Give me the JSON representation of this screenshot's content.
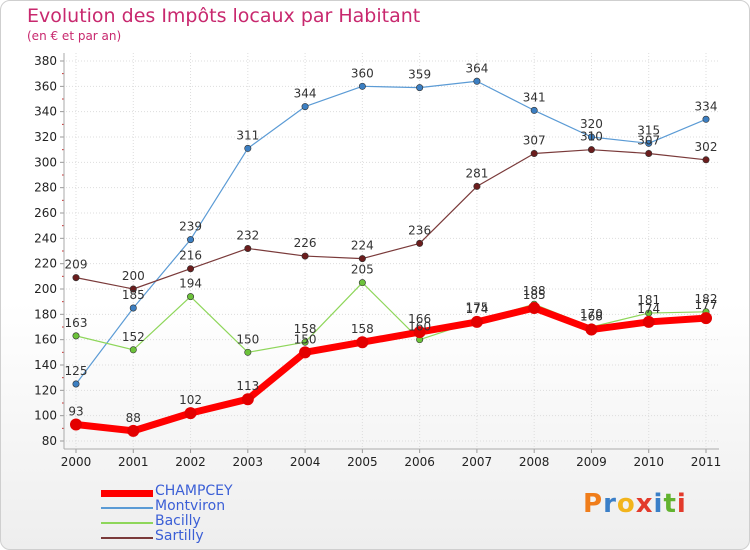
{
  "header": {
    "title": "Evolution des Impôts locaux par Habitant",
    "subtitle": "(en € et par an)"
  },
  "logo": {
    "text": "Proxiti",
    "letters": [
      {
        "ch": "P",
        "color": "#f07d1a"
      },
      {
        "ch": "r",
        "color": "#3a7fc8"
      },
      {
        "ch": "o",
        "color": "#f2b41c"
      },
      {
        "ch": "x",
        "color": "#e33a2b"
      },
      {
        "ch": "i",
        "color": "#3a7fc8"
      },
      {
        "ch": "t",
        "color": "#62b32f"
      },
      {
        "ch": "i",
        "color": "#e33a2b"
      }
    ]
  },
  "chart_data": {
    "type": "line",
    "title": "Evolution des Impôts locaux par Habitant",
    "subtitle": "(en € et par an)",
    "xlabel": "",
    "ylabel": "",
    "categories": [
      "2000",
      "2001",
      "2002",
      "2003",
      "2004",
      "2005",
      "2006",
      "2007",
      "2008",
      "2009",
      "2010",
      "2011"
    ],
    "ylim": [
      80,
      380
    ],
    "yticks": [
      80,
      100,
      120,
      140,
      160,
      180,
      200,
      220,
      240,
      260,
      280,
      300,
      320,
      340,
      360,
      380
    ],
    "grid": true,
    "legend_position": "bottom-left",
    "series": [
      {
        "name": "Montviron",
        "color": "#5b9bd5",
        "marker": "#3c7fc2",
        "width": 1.2,
        "values": [
          125,
          185,
          239,
          311,
          344,
          360,
          359,
          364,
          341,
          320,
          315,
          334
        ]
      },
      {
        "name": "Sartilly",
        "color": "#7a3a3a",
        "marker": "#6b1d1d",
        "width": 1.2,
        "values": [
          209,
          200,
          216,
          232,
          226,
          224,
          236,
          281,
          307,
          310,
          307,
          302
        ]
      },
      {
        "name": "Bacilly",
        "color": "#8ed65a",
        "marker": "#6cc23a",
        "width": 1.2,
        "values": [
          163,
          152,
          194,
          150,
          158,
          205,
          160,
          175,
          188,
          170,
          181,
          182
        ]
      },
      {
        "name": "CHAMPCEY",
        "color": "#ff0000",
        "marker": "#e30000",
        "width": 7,
        "values": [
          93,
          88,
          102,
          113,
          150,
          158,
          166,
          174,
          185,
          168,
          174,
          177
        ]
      }
    ],
    "legend_order": [
      "CHAMPCEY",
      "Montviron",
      "Bacilly",
      "Sartilly"
    ]
  }
}
